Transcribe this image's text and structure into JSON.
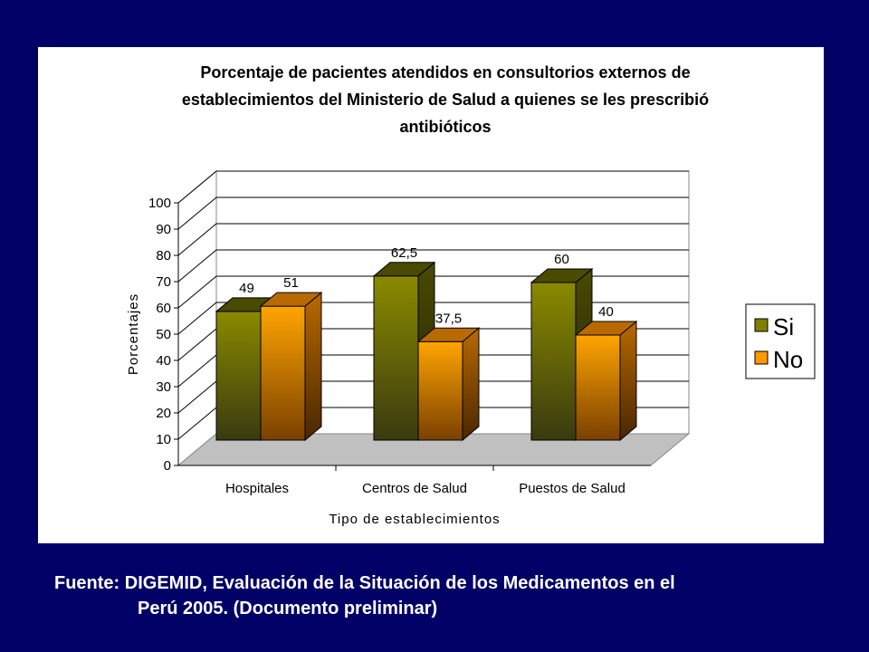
{
  "chart_data": {
    "type": "bar",
    "title_lines": [
      "Porcentaje de pacientes atendidos en consultorios externos de",
      "establecimientos del Ministerio de Salud a quienes se les prescribió",
      "antibióticos"
    ],
    "xlabel": "Tipo de establecimientos",
    "ylabel": "Porcentajes",
    "ylim": [
      0,
      100
    ],
    "yticks": [
      "0",
      "10",
      "20",
      "30",
      "40",
      "50",
      "60",
      "70",
      "80",
      "90",
      "100"
    ],
    "categories": [
      "Hospitales",
      "Centros de Salud",
      "Puestos de Salud"
    ],
    "series": [
      {
        "name": "Si",
        "values": [
          49,
          62.5,
          60
        ],
        "labels": [
          "49",
          "62,5",
          "60"
        ],
        "color": "#808000"
      },
      {
        "name": "No",
        "values": [
          51,
          37.5,
          40
        ],
        "labels": [
          "51",
          "37,5",
          "40"
        ],
        "color": "#ff9900"
      }
    ],
    "grid": true,
    "legend": "right",
    "background": "#000066"
  },
  "source": {
    "line1": "Fuente: DIGEMID, Evaluación de la Situación de los Medicamentos en el",
    "line2": "Perú 2005. (Documento preliminar)"
  }
}
